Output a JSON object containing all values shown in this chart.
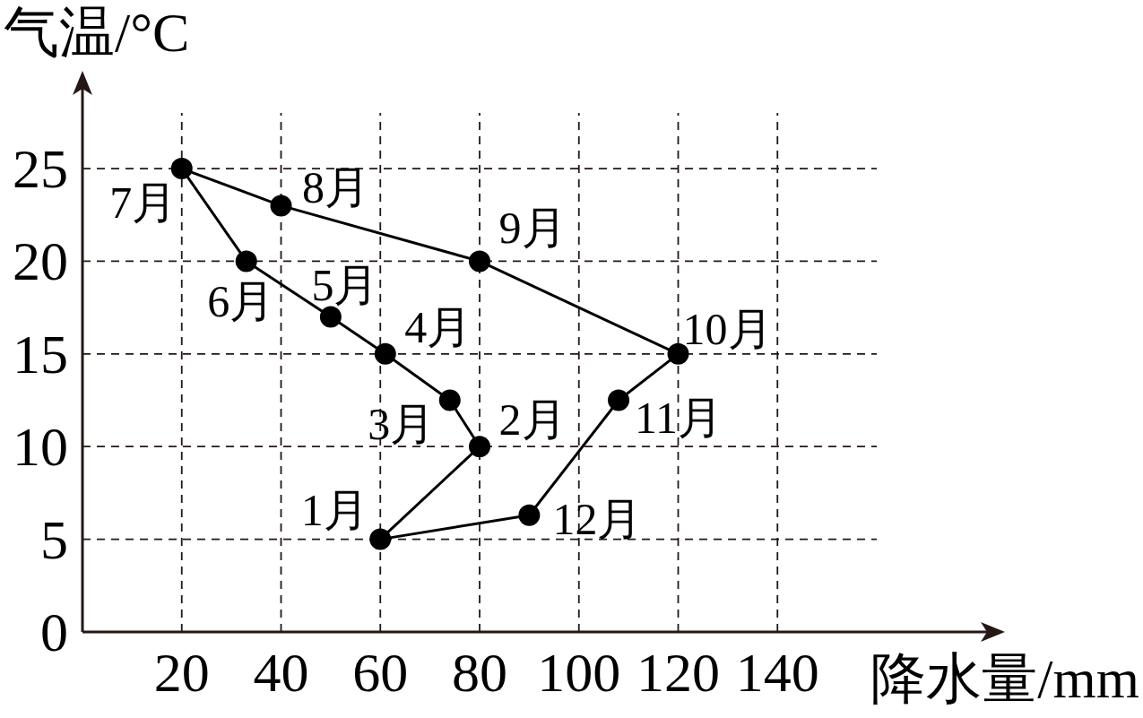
{
  "chart_data": {
    "type": "line",
    "xlabel": "降水量/mm",
    "ylabel": "气温/°C",
    "x": [
      60,
      80,
      74,
      61,
      50,
      33,
      20,
      40,
      80,
      120,
      108,
      90
    ],
    "values": [
      5,
      10,
      12.5,
      15,
      17,
      20,
      25,
      23,
      20,
      15,
      12.5,
      6.3
    ],
    "color": "#000000",
    "marker": "circle",
    "xlim": [
      0,
      160
    ],
    "ylim": [
      0,
      28
    ],
    "xticks": [
      20,
      40,
      60,
      80,
      100,
      120,
      140
    ],
    "yticks": [
      0,
      5,
      10,
      15,
      20,
      25
    ],
    "grid": true,
    "annotations": [
      {
        "text": "1月",
        "x": 60,
        "y": 5
      },
      {
        "text": "2月",
        "x": 80,
        "y": 10
      },
      {
        "text": "3月",
        "x": 74,
        "y": 12.5
      },
      {
        "text": "4月",
        "x": 61,
        "y": 15
      },
      {
        "text": "5月",
        "x": 50,
        "y": 17
      },
      {
        "text": "6月",
        "x": 33,
        "y": 20
      },
      {
        "text": "7月",
        "x": 20,
        "y": 25
      },
      {
        "text": "8月",
        "x": 40,
        "y": 23
      },
      {
        "text": "9月",
        "x": 80,
        "y": 20
      },
      {
        "text": "10月",
        "x": 120,
        "y": 15
      },
      {
        "text": "11月",
        "x": 108,
        "y": 12.5
      },
      {
        "text": "12月",
        "x": 90,
        "y": 6.3
      }
    ]
  }
}
